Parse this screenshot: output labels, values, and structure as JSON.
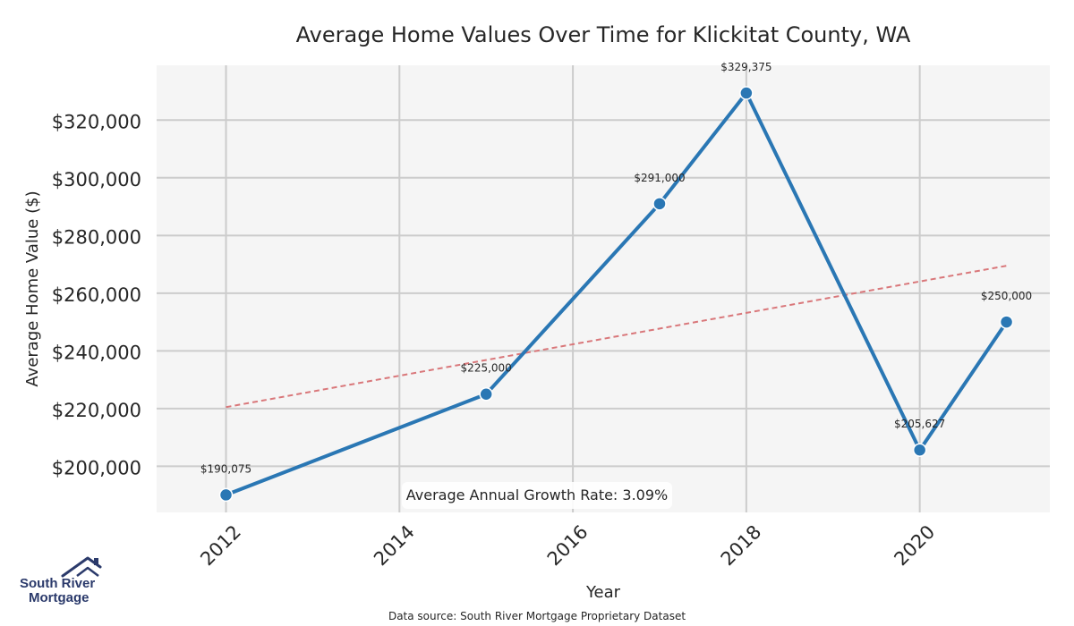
{
  "chart_data": {
    "type": "line",
    "title": "Average Home Values Over Time for Klickitat County, WA",
    "xlabel": "Year",
    "ylabel": "Average Home Value ($)",
    "x": [
      2012,
      2015,
      2017,
      2018,
      2020,
      2021
    ],
    "series": [
      {
        "name": "Average Home Value",
        "color": "#2a77b4",
        "values": [
          190075,
          225000,
          291000,
          329375,
          205627,
          250000
        ],
        "labels": [
          "$190,075",
          "$225,000",
          "$291,000",
          "$329,375",
          "$205,627",
          "$250,000"
        ]
      }
    ],
    "trend_line": {
      "color": "#d9777a",
      "start": [
        2012,
        220500
      ],
      "end": [
        2021,
        269500
      ]
    },
    "xlim": [
      2011.2,
      2021.5
    ],
    "ylim": [
      184000,
      339000
    ],
    "x_ticks": [
      2012,
      2014,
      2016,
      2018,
      2020
    ],
    "x_tick_labels": [
      "2012",
      "2014",
      "2016",
      "2018",
      "2020"
    ],
    "y_ticks": [
      200000,
      220000,
      240000,
      260000,
      280000,
      300000,
      320000
    ],
    "y_tick_labels": [
      "$200,000",
      "$220,000",
      "$240,000",
      "$260,000",
      "$280,000",
      "$300,000",
      "$320,000"
    ],
    "grid": true,
    "annotation": "Average Annual Growth Rate: 3.09%",
    "footer": "Data source: South River Mortgage Proprietary Dataset"
  },
  "logo": {
    "line1": "South River",
    "line2": "Mortgage",
    "icon": "house-roof-icon",
    "color": "#2b3a6b"
  }
}
